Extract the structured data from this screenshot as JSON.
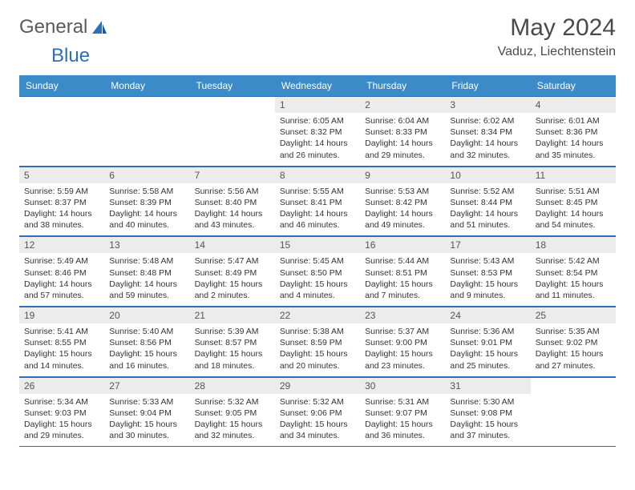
{
  "logo": {
    "text1": "General",
    "text2": "Blue"
  },
  "title": "May 2024",
  "location": "Vaduz, Liechtenstein",
  "header_bg": "#3b8bc9",
  "border_color": "#2e6fb5",
  "daynum_bg": "#ececed",
  "days_of_week": [
    "Sunday",
    "Monday",
    "Tuesday",
    "Wednesday",
    "Thursday",
    "Friday",
    "Saturday"
  ],
  "weeks": [
    [
      null,
      null,
      null,
      {
        "n": "1",
        "sr": "6:05 AM",
        "ss": "8:32 PM",
        "dl": "14 hours and 26 minutes."
      },
      {
        "n": "2",
        "sr": "6:04 AM",
        "ss": "8:33 PM",
        "dl": "14 hours and 29 minutes."
      },
      {
        "n": "3",
        "sr": "6:02 AM",
        "ss": "8:34 PM",
        "dl": "14 hours and 32 minutes."
      },
      {
        "n": "4",
        "sr": "6:01 AM",
        "ss": "8:36 PM",
        "dl": "14 hours and 35 minutes."
      }
    ],
    [
      {
        "n": "5",
        "sr": "5:59 AM",
        "ss": "8:37 PM",
        "dl": "14 hours and 38 minutes."
      },
      {
        "n": "6",
        "sr": "5:58 AM",
        "ss": "8:39 PM",
        "dl": "14 hours and 40 minutes."
      },
      {
        "n": "7",
        "sr": "5:56 AM",
        "ss": "8:40 PM",
        "dl": "14 hours and 43 minutes."
      },
      {
        "n": "8",
        "sr": "5:55 AM",
        "ss": "8:41 PM",
        "dl": "14 hours and 46 minutes."
      },
      {
        "n": "9",
        "sr": "5:53 AM",
        "ss": "8:42 PM",
        "dl": "14 hours and 49 minutes."
      },
      {
        "n": "10",
        "sr": "5:52 AM",
        "ss": "8:44 PM",
        "dl": "14 hours and 51 minutes."
      },
      {
        "n": "11",
        "sr": "5:51 AM",
        "ss": "8:45 PM",
        "dl": "14 hours and 54 minutes."
      }
    ],
    [
      {
        "n": "12",
        "sr": "5:49 AM",
        "ss": "8:46 PM",
        "dl": "14 hours and 57 minutes."
      },
      {
        "n": "13",
        "sr": "5:48 AM",
        "ss": "8:48 PM",
        "dl": "14 hours and 59 minutes."
      },
      {
        "n": "14",
        "sr": "5:47 AM",
        "ss": "8:49 PM",
        "dl": "15 hours and 2 minutes."
      },
      {
        "n": "15",
        "sr": "5:45 AM",
        "ss": "8:50 PM",
        "dl": "15 hours and 4 minutes."
      },
      {
        "n": "16",
        "sr": "5:44 AM",
        "ss": "8:51 PM",
        "dl": "15 hours and 7 minutes."
      },
      {
        "n": "17",
        "sr": "5:43 AM",
        "ss": "8:53 PM",
        "dl": "15 hours and 9 minutes."
      },
      {
        "n": "18",
        "sr": "5:42 AM",
        "ss": "8:54 PM",
        "dl": "15 hours and 11 minutes."
      }
    ],
    [
      {
        "n": "19",
        "sr": "5:41 AM",
        "ss": "8:55 PM",
        "dl": "15 hours and 14 minutes."
      },
      {
        "n": "20",
        "sr": "5:40 AM",
        "ss": "8:56 PM",
        "dl": "15 hours and 16 minutes."
      },
      {
        "n": "21",
        "sr": "5:39 AM",
        "ss": "8:57 PM",
        "dl": "15 hours and 18 minutes."
      },
      {
        "n": "22",
        "sr": "5:38 AM",
        "ss": "8:59 PM",
        "dl": "15 hours and 20 minutes."
      },
      {
        "n": "23",
        "sr": "5:37 AM",
        "ss": "9:00 PM",
        "dl": "15 hours and 23 minutes."
      },
      {
        "n": "24",
        "sr": "5:36 AM",
        "ss": "9:01 PM",
        "dl": "15 hours and 25 minutes."
      },
      {
        "n": "25",
        "sr": "5:35 AM",
        "ss": "9:02 PM",
        "dl": "15 hours and 27 minutes."
      }
    ],
    [
      {
        "n": "26",
        "sr": "5:34 AM",
        "ss": "9:03 PM",
        "dl": "15 hours and 29 minutes."
      },
      {
        "n": "27",
        "sr": "5:33 AM",
        "ss": "9:04 PM",
        "dl": "15 hours and 30 minutes."
      },
      {
        "n": "28",
        "sr": "5:32 AM",
        "ss": "9:05 PM",
        "dl": "15 hours and 32 minutes."
      },
      {
        "n": "29",
        "sr": "5:32 AM",
        "ss": "9:06 PM",
        "dl": "15 hours and 34 minutes."
      },
      {
        "n": "30",
        "sr": "5:31 AM",
        "ss": "9:07 PM",
        "dl": "15 hours and 36 minutes."
      },
      {
        "n": "31",
        "sr": "5:30 AM",
        "ss": "9:08 PM",
        "dl": "15 hours and 37 minutes."
      },
      null
    ]
  ],
  "labels": {
    "sunrise": "Sunrise:",
    "sunset": "Sunset:",
    "daylight": "Daylight:"
  }
}
